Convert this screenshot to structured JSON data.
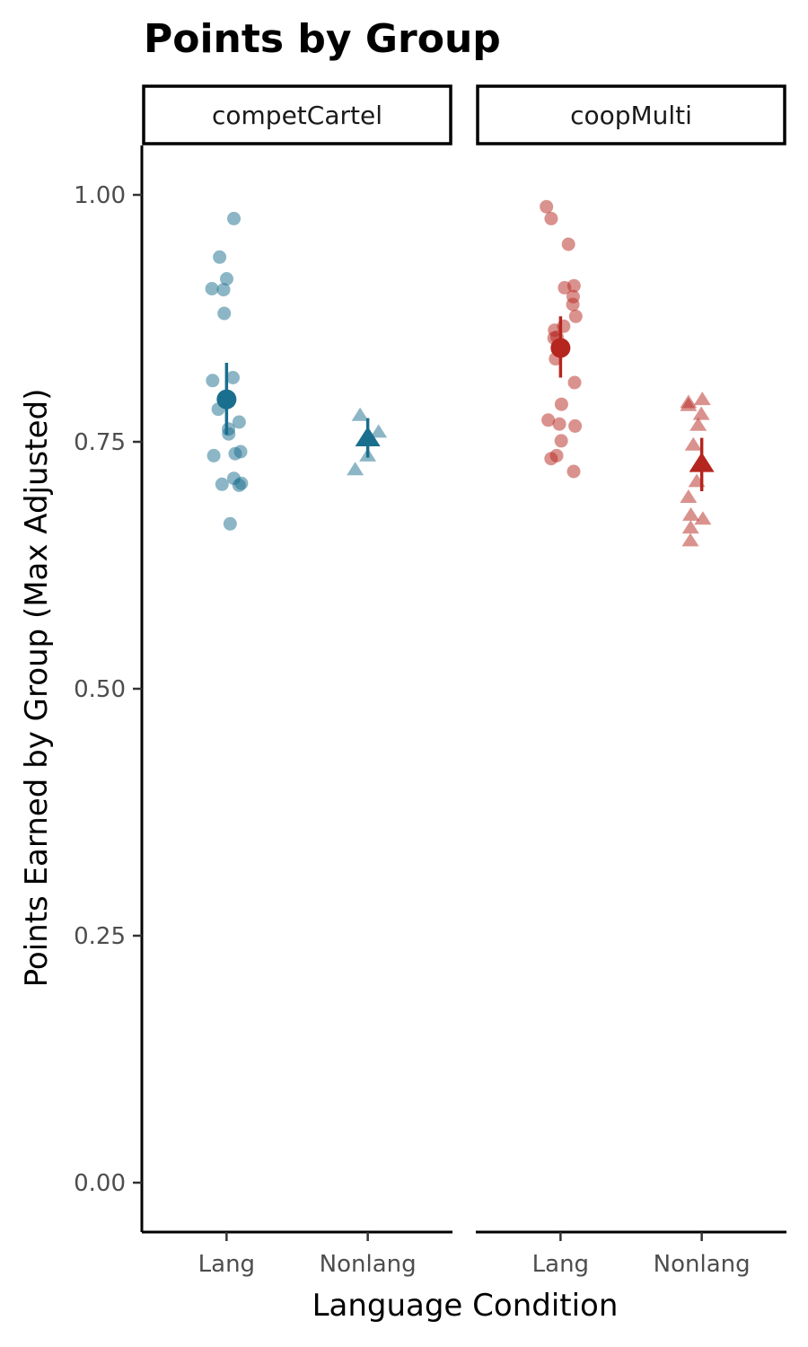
{
  "chart_data": {
    "type": "scatter",
    "title": "Points by Group",
    "xlabel": "Language Condition",
    "ylabel": "Points Earned by Group (Max Adjusted)",
    "ylim": [
      -0.05,
      1.05
    ],
    "yticks": [
      0.0,
      0.25,
      0.5,
      0.75,
      1.0
    ],
    "ytick_labels": [
      "0.00",
      "0.25",
      "0.50",
      "0.75",
      "1.00"
    ],
    "categories": [
      "Lang",
      "Nonlang"
    ],
    "grid": false,
    "legend": "none",
    "colors": {
      "competCartel": "#1a6e8e",
      "coopMulti": "#b5261e"
    },
    "panels": [
      {
        "name": "competCartel",
        "color": "#1a6e8e",
        "points": [
          {
            "category": "Lang",
            "shape": "circle",
            "values": [
              0.976,
              0.937,
              0.915,
              0.905,
              0.904,
              0.88,
              0.815,
              0.812,
              0.783,
              0.77,
              0.763,
              0.758,
              0.74,
              0.738,
              0.736,
              0.713,
              0.708,
              0.707,
              0.706,
              0.667
            ]
          },
          {
            "category": "Nonlang",
            "shape": "triangle",
            "values": [
              0.777,
              0.76,
              0.736,
              0.722
            ]
          }
        ],
        "means": [
          {
            "category": "Lang",
            "shape": "circle",
            "mean": 0.793,
            "lower": 0.757,
            "upper": 0.83
          },
          {
            "category": "Nonlang",
            "shape": "triangle",
            "mean": 0.754,
            "lower": 0.734,
            "upper": 0.774
          }
        ]
      },
      {
        "name": "coopMulti",
        "color": "#b5261e",
        "points": [
          {
            "category": "Lang",
            "shape": "circle",
            "values": [
              0.988,
              0.976,
              0.95,
              0.908,
              0.906,
              0.897,
              0.889,
              0.877,
              0.867,
              0.863,
              0.856,
              0.855,
              0.848,
              0.834,
              0.81,
              0.788,
              0.772,
              0.768,
              0.766,
              0.751,
              0.736,
              0.733,
              0.72
            ]
          },
          {
            "category": "Nonlang",
            "shape": "triangle",
            "values": [
              0.793,
              0.79,
              0.787,
              0.778,
              0.767,
              0.747,
              0.71,
              0.694,
              0.676,
              0.672,
              0.663,
              0.65
            ]
          }
        ],
        "means": [
          {
            "category": "Lang",
            "shape": "circle",
            "mean": 0.845,
            "lower": 0.815,
            "upper": 0.877
          },
          {
            "category": "Nonlang",
            "shape": "triangle",
            "mean": 0.728,
            "lower": 0.7,
            "upper": 0.754
          }
        ]
      }
    ]
  }
}
